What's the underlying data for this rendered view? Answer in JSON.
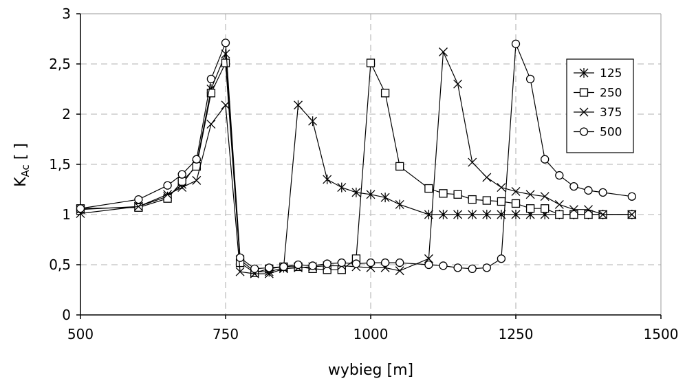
{
  "chart_data": {
    "type": "line",
    "title": "",
    "xlabel": "wybieg [m]",
    "ylabel_main": "K",
    "ylabel_sub": "Ac",
    "ylabel_suffix": " [ ]",
    "xlim": [
      500,
      1500
    ],
    "ylim": [
      0,
      3
    ],
    "xticks": [
      500,
      750,
      1000,
      1250,
      1500
    ],
    "xtick_labels": [
      "500",
      "750",
      "1000",
      "1250",
      "1500"
    ],
    "yticks": [
      0,
      0.5,
      1,
      1.5,
      2,
      2.5,
      3
    ],
    "ytick_labels": [
      "0",
      "0,5",
      "1",
      "1,5",
      "2",
      "2,5",
      "3"
    ],
    "grid": "dashed",
    "legend_position": "top-right",
    "series": [
      {
        "name": "125",
        "marker": "asterisk",
        "points": [
          [
            500,
            1.05
          ],
          [
            600,
            1.08
          ],
          [
            650,
            1.18
          ],
          [
            675,
            1.3
          ],
          [
            700,
            1.5
          ],
          [
            725,
            2.25
          ],
          [
            750,
            2.6
          ],
          [
            775,
            0.55
          ],
          [
            800,
            0.43
          ],
          [
            825,
            0.43
          ],
          [
            850,
            0.47
          ],
          [
            875,
            2.09
          ],
          [
            900,
            1.93
          ],
          [
            925,
            1.35
          ],
          [
            950,
            1.27
          ],
          [
            975,
            1.22
          ],
          [
            1000,
            1.2
          ],
          [
            1025,
            1.17
          ],
          [
            1050,
            1.1
          ],
          [
            1100,
            1.0
          ],
          [
            1125,
            1.0
          ],
          [
            1150,
            1.0
          ],
          [
            1175,
            1.0
          ],
          [
            1200,
            1.0
          ],
          [
            1225,
            1.0
          ],
          [
            1250,
            1.0
          ],
          [
            1275,
            1.0
          ],
          [
            1300,
            1.0
          ],
          [
            1325,
            1.0
          ],
          [
            1350,
            1.0
          ],
          [
            1375,
            1.0
          ],
          [
            1400,
            1.0
          ],
          [
            1450,
            1.0
          ]
        ]
      },
      {
        "name": "250",
        "marker": "square",
        "points": [
          [
            500,
            1.06
          ],
          [
            600,
            1.07
          ],
          [
            650,
            1.16
          ],
          [
            675,
            1.33
          ],
          [
            700,
            1.48
          ],
          [
            725,
            2.21
          ],
          [
            750,
            2.51
          ],
          [
            775,
            0.52
          ],
          [
            800,
            0.42
          ],
          [
            825,
            0.46
          ],
          [
            850,
            0.48
          ],
          [
            875,
            0.48
          ],
          [
            900,
            0.46
          ],
          [
            925,
            0.45
          ],
          [
            950,
            0.45
          ],
          [
            975,
            0.56
          ],
          [
            1000,
            2.51
          ],
          [
            1025,
            2.21
          ],
          [
            1050,
            1.48
          ],
          [
            1100,
            1.26
          ],
          [
            1125,
            1.21
          ],
          [
            1150,
            1.2
          ],
          [
            1175,
            1.15
          ],
          [
            1200,
            1.14
          ],
          [
            1225,
            1.13
          ],
          [
            1250,
            1.11
          ],
          [
            1275,
            1.06
          ],
          [
            1300,
            1.06
          ],
          [
            1325,
            1.0
          ],
          [
            1350,
            1.0
          ],
          [
            1375,
            1.0
          ],
          [
            1400,
            1.0
          ],
          [
            1450,
            1.0
          ]
        ]
      },
      {
        "name": "375",
        "marker": "x",
        "points": [
          [
            500,
            1.01
          ],
          [
            600,
            1.08
          ],
          [
            650,
            1.2
          ],
          [
            675,
            1.27
          ],
          [
            700,
            1.34
          ],
          [
            725,
            1.9
          ],
          [
            750,
            2.09
          ],
          [
            775,
            0.43
          ],
          [
            800,
            0.41
          ],
          [
            825,
            0.41
          ],
          [
            850,
            0.46
          ],
          [
            875,
            0.47
          ],
          [
            900,
            0.48
          ],
          [
            925,
            0.49
          ],
          [
            950,
            0.49
          ],
          [
            975,
            0.48
          ],
          [
            1000,
            0.47
          ],
          [
            1025,
            0.47
          ],
          [
            1050,
            0.44
          ],
          [
            1100,
            0.56
          ],
          [
            1125,
            2.62
          ],
          [
            1150,
            2.3
          ],
          [
            1175,
            1.52
          ],
          [
            1200,
            1.37
          ],
          [
            1225,
            1.27
          ],
          [
            1250,
            1.23
          ],
          [
            1275,
            1.2
          ],
          [
            1300,
            1.18
          ],
          [
            1325,
            1.1
          ],
          [
            1350,
            1.05
          ],
          [
            1375,
            1.05
          ],
          [
            1400,
            1.0
          ],
          [
            1450,
            1.0
          ]
        ]
      },
      {
        "name": "500",
        "marker": "circle",
        "points": [
          [
            500,
            1.06
          ],
          [
            600,
            1.15
          ],
          [
            650,
            1.29
          ],
          [
            675,
            1.4
          ],
          [
            700,
            1.55
          ],
          [
            725,
            2.35
          ],
          [
            750,
            2.71
          ],
          [
            775,
            0.57
          ],
          [
            800,
            0.46
          ],
          [
            825,
            0.47
          ],
          [
            850,
            0.48
          ],
          [
            875,
            0.5
          ],
          [
            900,
            0.49
          ],
          [
            925,
            0.51
          ],
          [
            950,
            0.52
          ],
          [
            975,
            0.51
          ],
          [
            1000,
            0.52
          ],
          [
            1025,
            0.52
          ],
          [
            1050,
            0.52
          ],
          [
            1100,
            0.5
          ],
          [
            1125,
            0.49
          ],
          [
            1150,
            0.47
          ],
          [
            1175,
            0.46
          ],
          [
            1200,
            0.47
          ],
          [
            1225,
            0.56
          ],
          [
            1250,
            2.7
          ],
          [
            1275,
            2.35
          ],
          [
            1300,
            1.55
          ],
          [
            1325,
            1.39
          ],
          [
            1350,
            1.28
          ],
          [
            1375,
            1.24
          ],
          [
            1400,
            1.22
          ],
          [
            1450,
            1.18
          ]
        ]
      }
    ]
  },
  "colors": {
    "line": "#000000",
    "grid": "#c0c0c0",
    "background": "#ffffff"
  }
}
